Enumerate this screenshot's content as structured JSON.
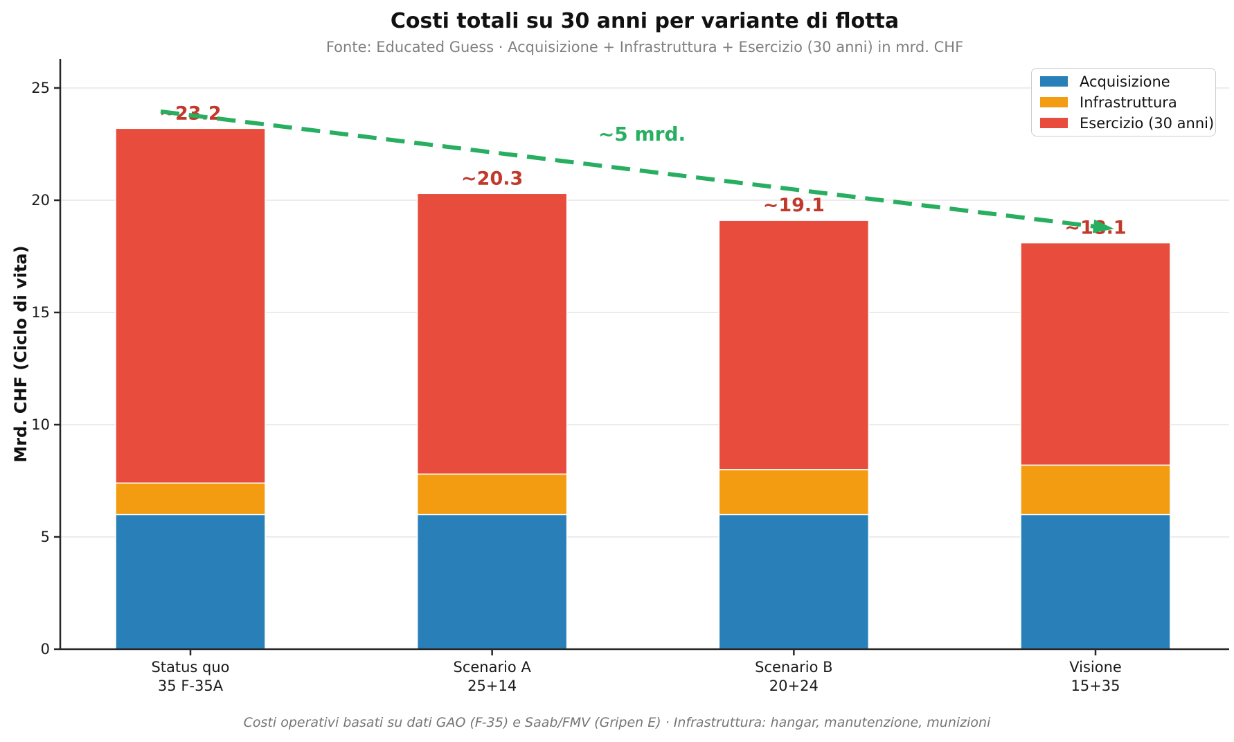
{
  "title": "Costi totali su 30 anni per variante di flotta",
  "subtitle": "Fonte: Educated Guess · Acquisizione + Infrastruttura + Esercizio (30 anni) in mrd. CHF",
  "footer": "Costi operativi basati su dati GAO (F-35) e Saab/FMV (Gripen E) · Infrastruttura: hangar, manutenzione, munizioni",
  "chart_data": {
    "type": "bar",
    "stacked": true,
    "title": "Costi totali su 30 anni per variante di flotta",
    "subtitle": "Fonte: Educated Guess · Acquisizione + Infrastruttura + Esercizio (30 anni) in mrd. CHF",
    "xlabel": "",
    "ylabel": "Mrd. CHF (Ciclo di vita)",
    "ylim": [
      0,
      26.3
    ],
    "yticks": [
      0,
      5,
      10,
      15,
      20,
      25
    ],
    "grid": true,
    "legend_position": "upper right",
    "categories": [
      [
        "Status quo",
        "35 F-35A"
      ],
      [
        "Scenario A",
        "25+14"
      ],
      [
        "Scenario B",
        "20+24"
      ],
      [
        "Visione",
        "15+35"
      ]
    ],
    "series": [
      {
        "name": "Acquisizione",
        "color": "#2980b9",
        "values": [
          6.0,
          6.0,
          6.0,
          6.0
        ]
      },
      {
        "name": "Infrastruttura",
        "color": "#f39c12",
        "values": [
          1.4,
          1.8,
          2.0,
          2.2
        ]
      },
      {
        "name": "Esercizio (30 anni)",
        "color": "#e74c3c",
        "values": [
          15.8,
          12.5,
          11.1,
          9.9
        ]
      }
    ],
    "totals": [
      23.2,
      20.3,
      19.1,
      18.1
    ],
    "total_labels": [
      "~23.2",
      "~20.3",
      "~19.1",
      "~18.1"
    ],
    "total_label_color": "#c0392b",
    "annotation": {
      "text": "~5 mrd.",
      "color": "#27ae60"
    }
  }
}
